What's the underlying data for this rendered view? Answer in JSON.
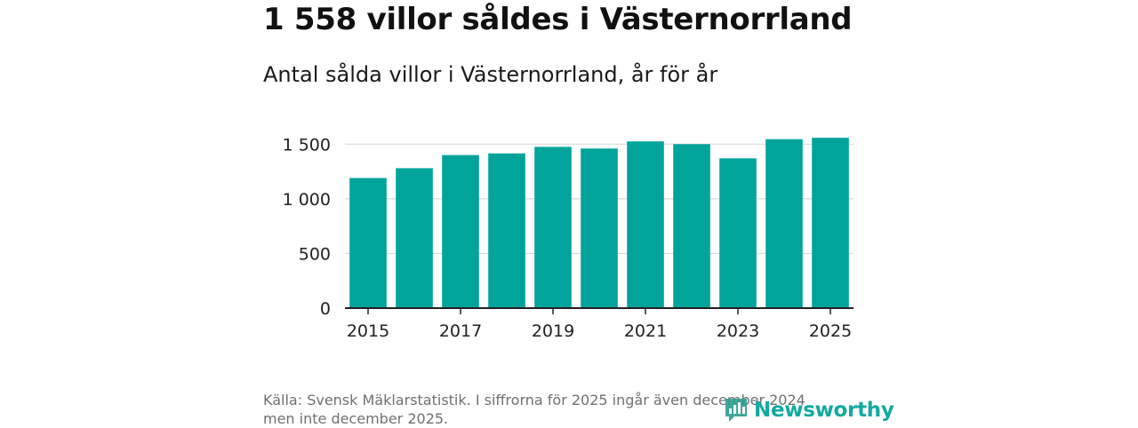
{
  "title": "1 558 villor såldes i Västernorrland",
  "subtitle": "Antal sålda villor i Västernorrland, år för år",
  "source_line1": "Källa: Svensk Mäklarstatistik. I siffrorna för 2025 ingår även december 2024",
  "source_line2": "men inte december 2025.",
  "logo_text": "Newsworthy",
  "colors": {
    "bar": "#00a49b",
    "grid": "#d9d9d9",
    "axis": "#222222",
    "tick_text": "#222222"
  },
  "chart_data": {
    "type": "bar",
    "title": "Antal sålda villor i Västernorrland, år för år",
    "xlabel": "",
    "ylabel": "",
    "categories": [
      "2015",
      "2016",
      "2017",
      "2018",
      "2019",
      "2020",
      "2021",
      "2022",
      "2023",
      "2024",
      "2025"
    ],
    "values": [
      1190,
      1280,
      1400,
      1415,
      1475,
      1460,
      1525,
      1500,
      1370,
      1545,
      1558
    ],
    "x_tick_labels": [
      "2015",
      "2017",
      "2019",
      "2021",
      "2023",
      "2025"
    ],
    "y_ticks": [
      0,
      500,
      1000,
      1500
    ],
    "y_tick_labels": [
      "0",
      "500",
      "1 000",
      "1 500"
    ],
    "ylim": [
      0,
      1600
    ],
    "grid": true,
    "legend": "none"
  }
}
